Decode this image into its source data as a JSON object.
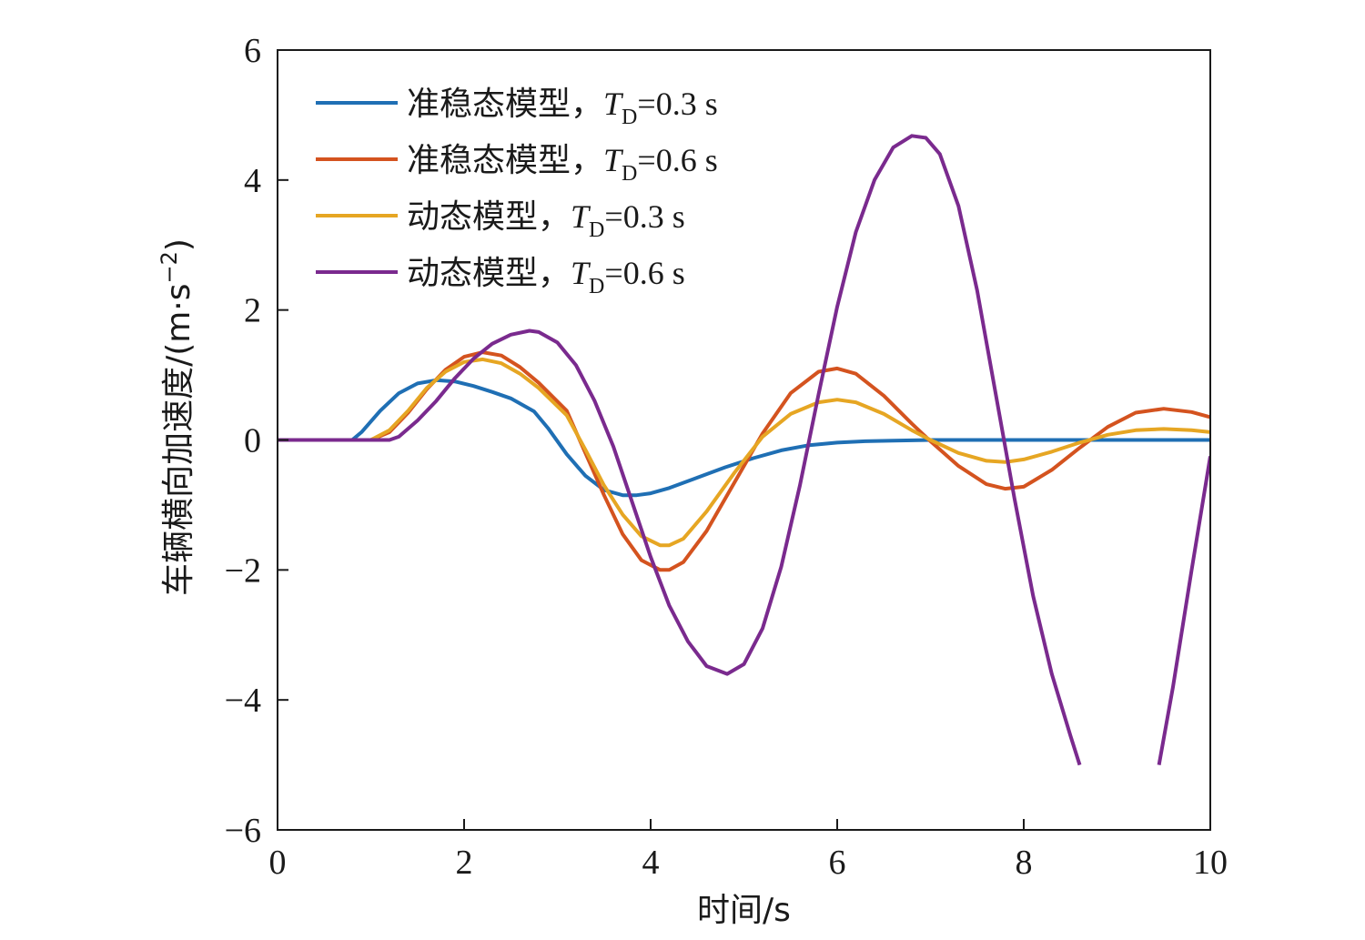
{
  "chart_data": {
    "type": "line",
    "xlabel": "时间/s",
    "ylabel": "车辆横向加速度/(m·s⁻²)",
    "ylabel_parts": {
      "main": "车辆横向加速度/(m·s",
      "sup": "−2",
      "close": ")"
    },
    "xlim": [
      0,
      10
    ],
    "ylim": [
      -6,
      6
    ],
    "xticks": [
      0,
      2,
      4,
      6,
      8,
      10
    ],
    "yticks": [
      -6,
      -4,
      -2,
      0,
      2,
      4,
      6
    ],
    "ytick_labels": [
      "−6",
      "−4",
      "−2",
      "0",
      "2",
      "4",
      "6"
    ],
    "grid": false,
    "legend_position": "top-left",
    "series": [
      {
        "name": "准稳态模型，T_D=0.3 s",
        "label_prefix": "准稳态模型，",
        "label_T": "T",
        "label_sub": "D",
        "label_suffix": "=0.3 s",
        "color": "#1f6fb4",
        "x": [
          0,
          0.8,
          0.9,
          1.1,
          1.3,
          1.5,
          1.7,
          1.9,
          2.1,
          2.3,
          2.5,
          2.75,
          2.9,
          3.1,
          3.3,
          3.5,
          3.7,
          3.85,
          4.0,
          4.2,
          4.5,
          4.8,
          5.1,
          5.4,
          5.7,
          6.0,
          6.3,
          6.6,
          7.0,
          8.0,
          9.0,
          10.0
        ],
        "y": [
          0,
          0,
          0.12,
          0.45,
          0.72,
          0.87,
          0.92,
          0.9,
          0.83,
          0.74,
          0.64,
          0.44,
          0.18,
          -0.22,
          -0.55,
          -0.77,
          -0.85,
          -0.85,
          -0.82,
          -0.74,
          -0.58,
          -0.42,
          -0.28,
          -0.16,
          -0.08,
          -0.04,
          -0.02,
          -0.01,
          0,
          0,
          0,
          0
        ]
      },
      {
        "name": "准稳态模型，T_D=0.6 s",
        "label_prefix": "准稳态模型，",
        "label_T": "T",
        "label_sub": "D",
        "label_suffix": "=0.6 s",
        "color": "#d4531f",
        "x": [
          0,
          1.0,
          1.2,
          1.4,
          1.6,
          1.8,
          2.0,
          2.2,
          2.4,
          2.6,
          2.8,
          3.1,
          3.3,
          3.5,
          3.7,
          3.9,
          4.1,
          4.2,
          4.35,
          4.6,
          4.9,
          5.2,
          5.5,
          5.8,
          6.0,
          6.2,
          6.5,
          6.8,
          7.0,
          7.3,
          7.6,
          7.8,
          8.0,
          8.3,
          8.6,
          8.9,
          9.2,
          9.5,
          9.8,
          10.0
        ],
        "y": [
          0,
          0,
          0.12,
          0.42,
          0.78,
          1.08,
          1.28,
          1.35,
          1.3,
          1.12,
          0.88,
          0.45,
          -0.2,
          -0.85,
          -1.45,
          -1.85,
          -2.0,
          -2.0,
          -1.88,
          -1.4,
          -0.65,
          0.1,
          0.72,
          1.05,
          1.1,
          1.02,
          0.68,
          0.25,
          -0.02,
          -0.4,
          -0.68,
          -0.75,
          -0.72,
          -0.46,
          -0.12,
          0.2,
          0.42,
          0.48,
          0.43,
          0.35
        ]
      },
      {
        "name": "动态模型，T_D=0.3 s",
        "label_prefix": "动态模型，",
        "label_T": "T",
        "label_sub": "D",
        "label_suffix": "=0.3 s",
        "color": "#e6a623",
        "x": [
          0,
          1.0,
          1.2,
          1.4,
          1.6,
          1.8,
          2.0,
          2.2,
          2.4,
          2.6,
          2.8,
          3.1,
          3.3,
          3.5,
          3.7,
          3.9,
          4.1,
          4.2,
          4.35,
          4.6,
          4.9,
          5.2,
          5.5,
          5.8,
          6.0,
          6.2,
          6.5,
          6.8,
          7.0,
          7.3,
          7.6,
          7.8,
          8.0,
          8.3,
          8.6,
          8.9,
          9.2,
          9.5,
          9.8,
          10.0
        ],
        "y": [
          0,
          0,
          0.15,
          0.45,
          0.8,
          1.05,
          1.2,
          1.24,
          1.18,
          1.02,
          0.8,
          0.38,
          -0.15,
          -0.7,
          -1.15,
          -1.48,
          -1.62,
          -1.62,
          -1.52,
          -1.1,
          -0.5,
          0.05,
          0.4,
          0.58,
          0.62,
          0.58,
          0.4,
          0.15,
          0.0,
          -0.2,
          -0.32,
          -0.34,
          -0.3,
          -0.18,
          -0.04,
          0.08,
          0.15,
          0.17,
          0.15,
          0.12
        ]
      },
      {
        "name": "动态模型，T_D=0.6 s",
        "label_prefix": "动态模型，",
        "label_T": "T",
        "label_sub": "D",
        "label_suffix": "=0.6 s",
        "color": "#7a2a8e",
        "x": [
          0,
          1.2,
          1.3,
          1.5,
          1.7,
          1.9,
          2.1,
          2.3,
          2.5,
          2.7,
          2.8,
          3.0,
          3.2,
          3.4,
          3.6,
          3.8,
          4.0,
          4.2,
          4.4,
          4.6,
          4.82,
          5.0,
          5.2,
          5.4,
          5.6,
          5.8,
          6.0,
          6.2,
          6.4,
          6.6,
          6.8,
          6.95,
          7.1,
          7.3,
          7.5,
          7.7,
          7.9,
          8.1,
          8.3,
          8.5,
          8.6
        ],
        "y": [
          0,
          0,
          0.05,
          0.3,
          0.6,
          0.95,
          1.25,
          1.48,
          1.62,
          1.68,
          1.66,
          1.5,
          1.15,
          0.6,
          -0.1,
          -0.95,
          -1.8,
          -2.55,
          -3.1,
          -3.48,
          -3.6,
          -3.45,
          -2.9,
          -1.95,
          -0.7,
          0.7,
          2.05,
          3.2,
          4.0,
          4.5,
          4.68,
          4.65,
          4.4,
          3.6,
          2.3,
          0.7,
          -0.9,
          -2.4,
          -3.6,
          -4.55,
          -5.0
        ]
      },
      {
        "name": "",
        "color": "#7a2a8e",
        "x": [
          9.45,
          9.6,
          9.8,
          10.0
        ],
        "y": [
          -5.0,
          -3.8,
          -2.0,
          -0.25
        ]
      }
    ]
  }
}
